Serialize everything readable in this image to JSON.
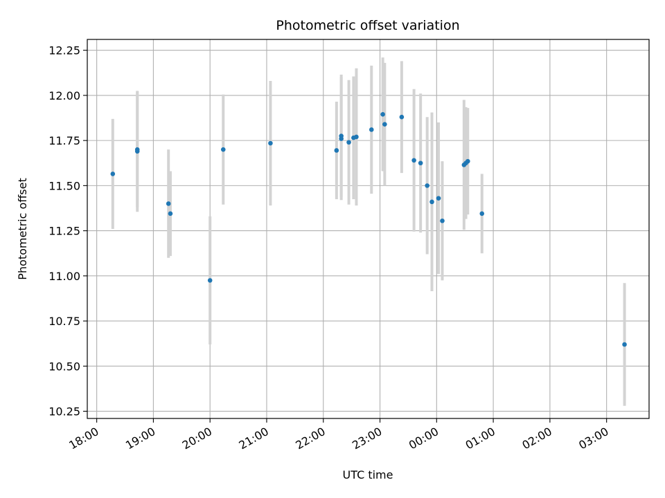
{
  "chart_data": {
    "type": "scatter",
    "title": "Photometric offset variation",
    "xlabel": "UTC time",
    "ylabel": "Photometric offset",
    "x_ticks": [
      "18:00",
      "19:00",
      "20:00",
      "21:00",
      "22:00",
      "23:00",
      "00:00",
      "01:00",
      "02:00",
      "03:00"
    ],
    "y_ticks": [
      "10.25",
      "10.50",
      "10.75",
      "11.00",
      "11.25",
      "11.50",
      "11.75",
      "12.00",
      "12.25"
    ],
    "xlim": [
      "17:50",
      "03:45"
    ],
    "ylim": [
      10.21,
      12.31
    ],
    "grid": true,
    "colors": {
      "marker": "#1f77b4",
      "errorbar": "#d3d3d3",
      "grid": "#b0b0b0"
    },
    "series": [
      {
        "points": [
          {
            "x": "18:17",
            "y": 11.565,
            "err": 0.305
          },
          {
            "x": "18:43",
            "y": 11.69,
            "err": 0.335
          },
          {
            "x": "18:43",
            "y": 11.7,
            "err": 0.32
          },
          {
            "x": "19:16",
            "y": 11.4,
            "err": 0.3
          },
          {
            "x": "19:18",
            "y": 11.345,
            "err": 0.235
          },
          {
            "x": "20:00",
            "y": 10.975,
            "err": 0.355
          },
          {
            "x": "20:14",
            "y": 11.7,
            "err": 0.305
          },
          {
            "x": "21:04",
            "y": 11.735,
            "err": 0.345
          },
          {
            "x": "22:14",
            "y": 11.695,
            "err": 0.27
          },
          {
            "x": "22:19",
            "y": 11.775,
            "err": 0.34
          },
          {
            "x": "22:19",
            "y": 11.76,
            "err": 0.34
          },
          {
            "x": "22:27",
            "y": 11.74,
            "err": 0.345
          },
          {
            "x": "22:32",
            "y": 11.765,
            "err": 0.34
          },
          {
            "x": "22:35",
            "y": 11.77,
            "err": 0.38
          },
          {
            "x": "22:51",
            "y": 11.81,
            "err": 0.355
          },
          {
            "x": "23:03",
            "y": 11.895,
            "err": 0.315
          },
          {
            "x": "23:05",
            "y": 11.84,
            "err": 0.34
          },
          {
            "x": "23:23",
            "y": 11.88,
            "err": 0.31
          },
          {
            "x": "23:36",
            "y": 11.64,
            "err": 0.395
          },
          {
            "x": "23:43",
            "y": 11.625,
            "err": 0.385
          },
          {
            "x": "23:50",
            "y": 11.5,
            "err": 0.38
          },
          {
            "x": "23:55",
            "y": 11.41,
            "err": 0.495
          },
          {
            "x": "00:02",
            "y": 11.43,
            "err": 0.42
          },
          {
            "x": "00:06",
            "y": 11.305,
            "err": 0.33
          },
          {
            "x": "00:29",
            "y": 11.615,
            "err": 0.36
          },
          {
            "x": "00:31",
            "y": 11.625,
            "err": 0.31
          },
          {
            "x": "00:33",
            "y": 11.635,
            "err": 0.295
          },
          {
            "x": "00:48",
            "y": 11.345,
            "err": 0.22
          },
          {
            "x": "03:19",
            "y": 10.62,
            "err": 0.34
          }
        ]
      }
    ]
  }
}
